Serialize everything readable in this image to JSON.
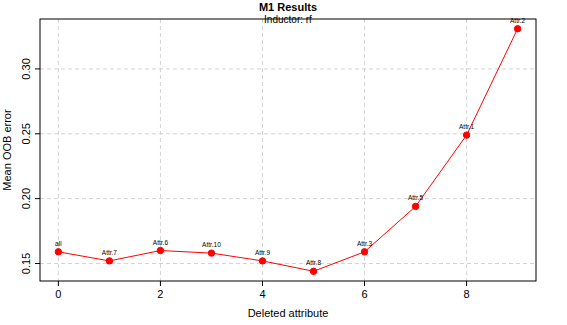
{
  "chart_data": {
    "type": "line",
    "title": "M1 Results",
    "subtitle": "Inductor: rf",
    "x_label": "Deleted attribute",
    "y_label": "Mean OOB error",
    "x": [
      0,
      1,
      2,
      3,
      4,
      5,
      6,
      7,
      8,
      9
    ],
    "values": [
      0.159,
      0.152,
      0.16,
      0.158,
      0.152,
      0.144,
      0.159,
      0.194,
      0.249,
      0.331
    ],
    "annotations": [
      "all",
      "Attr.7",
      "Attr.6",
      "Attr.10",
      "Attr.9",
      "Attr.8",
      "Attr.3",
      "Attr.5",
      "Attr.1",
      "Attr.2"
    ],
    "color": "#ff0000",
    "marker": "circle",
    "xlim": [
      -0.36,
      9.36
    ],
    "xticks": [
      0,
      2,
      4,
      6,
      8
    ],
    "ylim": [
      0.1365,
      0.3385
    ],
    "yticks": [
      0.15,
      0.2,
      0.25,
      0.3
    ],
    "grid": true
  }
}
